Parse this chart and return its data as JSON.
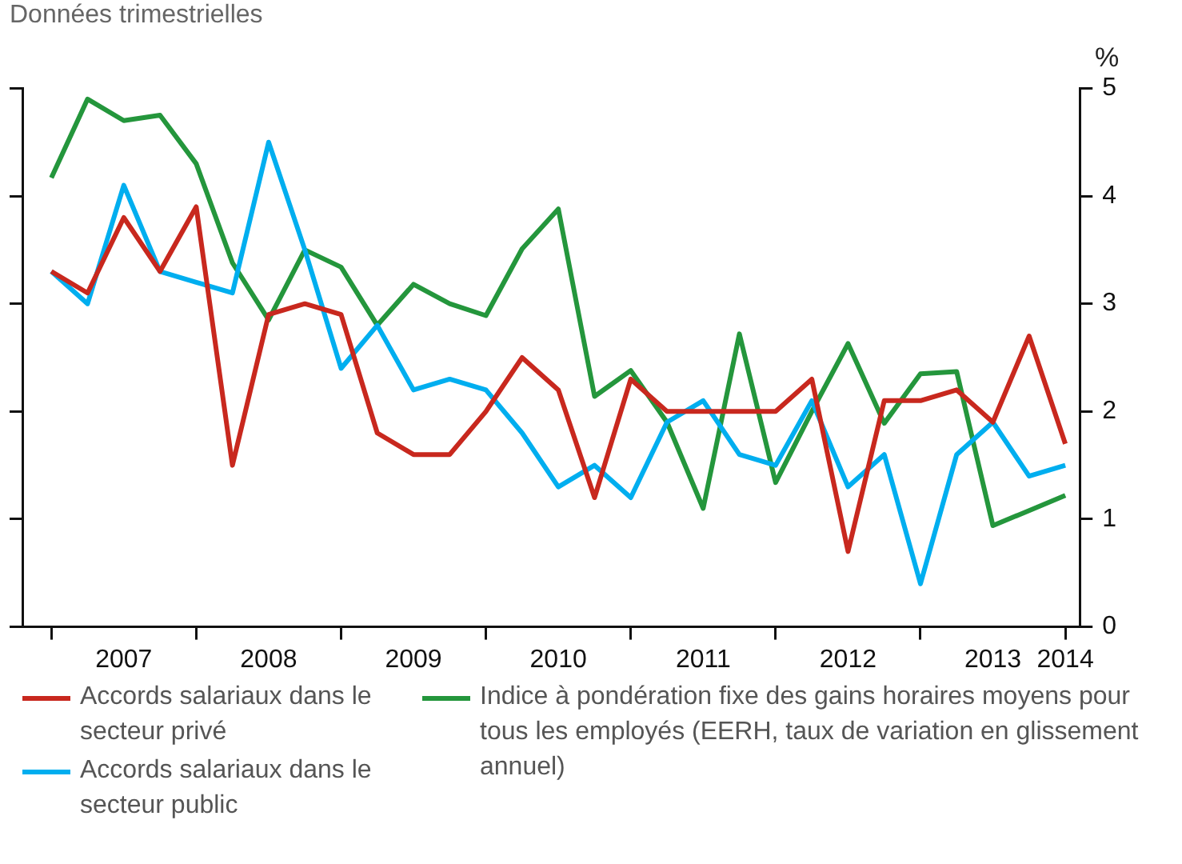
{
  "chart_data": {
    "type": "line",
    "title": "Données trimestrielles",
    "ylabel": "%",
    "x": [
      2007,
      2007.25,
      2007.5,
      2007.75,
      2008,
      2008.25,
      2008.5,
      2008.75,
      2009,
      2009.25,
      2009.5,
      2009.75,
      2010,
      2010.25,
      2010.5,
      2010.75,
      2011,
      2011.25,
      2011.5,
      2011.75,
      2012,
      2012.25,
      2012.5,
      2012.75,
      2013,
      2013.25,
      2013.5,
      2013.75,
      2014
    ],
    "xlim": [
      2006.8,
      2014.1
    ],
    "xticks": [
      {
        "value": 2007,
        "label": null
      },
      {
        "value": 2007.5,
        "label": "2007"
      },
      {
        "value": 2008,
        "label": null
      },
      {
        "value": 2008.5,
        "label": "2008"
      },
      {
        "value": 2009,
        "label": null
      },
      {
        "value": 2009.5,
        "label": "2009"
      },
      {
        "value": 2010,
        "label": null
      },
      {
        "value": 2010.5,
        "label": "2010"
      },
      {
        "value": 2011,
        "label": null
      },
      {
        "value": 2011.5,
        "label": "2011"
      },
      {
        "value": 2012,
        "label": null
      },
      {
        "value": 2012.5,
        "label": "2012"
      },
      {
        "value": 2013,
        "label": null
      },
      {
        "value": 2013.5,
        "label": "2013"
      },
      {
        "value": 2014,
        "label": "2014"
      }
    ],
    "ylim": [
      0,
      5
    ],
    "yticks": [
      0,
      1,
      2,
      3,
      4,
      5
    ],
    "grid": false,
    "legend": "bottom",
    "marker": "none",
    "line_style": "solid",
    "series": [
      {
        "name": "Accords salariaux dans le secteur privé",
        "color": "#c8281e",
        "values": [
          3.3,
          3.1,
          3.8,
          3.3,
          3.9,
          1.5,
          2.9,
          3.0,
          2.9,
          1.8,
          1.6,
          1.6,
          2.0,
          2.5,
          2.2,
          1.2,
          2.3,
          2.0,
          2.0,
          2.0,
          2.0,
          2.3,
          0.7,
          2.1,
          2.1,
          2.2,
          1.9,
          2.7,
          1.7
        ]
      },
      {
        "name": "Accords salariaux dans le secteur public",
        "color": "#00aeef",
        "values": [
          3.3,
          3.0,
          4.1,
          3.3,
          3.2,
          3.1,
          4.5,
          3.5,
          2.4,
          2.8,
          2.2,
          2.3,
          2.2,
          1.8,
          1.3,
          1.5,
          1.2,
          1.9,
          2.1,
          1.6,
          1.5,
          2.1,
          1.3,
          1.6,
          0.4,
          1.6,
          1.9,
          1.4,
          1.5
        ]
      },
      {
        "name": "Indice à pondération fixe des gains horaires moyens pour tous les employés (EERH, taux de variation en glissement annuel)",
        "color": "#24963c",
        "values": [
          4.17,
          4.9,
          4.7,
          4.75,
          4.3,
          3.38,
          2.85,
          3.5,
          3.34,
          2.8,
          3.18,
          3.0,
          2.89,
          3.51,
          3.88,
          2.14,
          2.38,
          1.9,
          1.1,
          2.72,
          1.34,
          2.0,
          2.63,
          1.89,
          2.35,
          2.37,
          0.94,
          1.08,
          1.22
        ]
      }
    ]
  }
}
